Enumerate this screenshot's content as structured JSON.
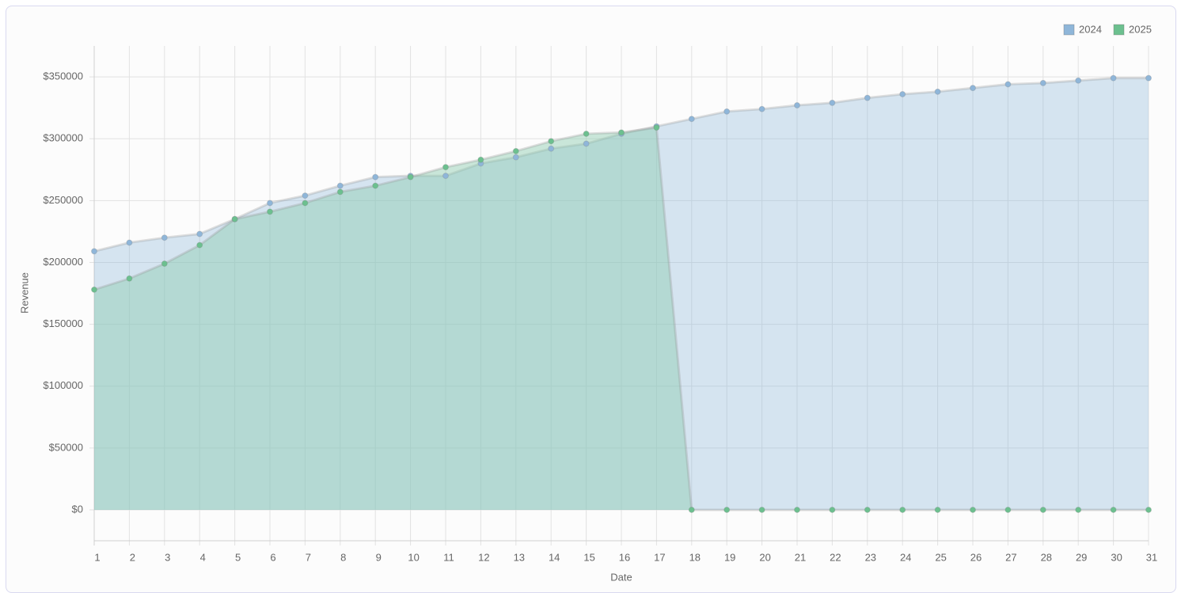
{
  "chart_data": {
    "type": "area",
    "x_label": "Date",
    "y_label": "Revenue",
    "categories": [
      "1",
      "2",
      "3",
      "4",
      "5",
      "6",
      "7",
      "8",
      "9",
      "10",
      "11",
      "12",
      "13",
      "14",
      "15",
      "16",
      "17",
      "18",
      "19",
      "20",
      "21",
      "22",
      "23",
      "24",
      "25",
      "26",
      "27",
      "28",
      "29",
      "30",
      "31"
    ],
    "series": [
      {
        "name": "2024",
        "color": "#8fb6d9",
        "fill": "rgba(130,178,215,0.32)",
        "values": [
          209000,
          216000,
          220000,
          223000,
          235000,
          248000,
          254000,
          262000,
          269000,
          270000,
          270000,
          280000,
          285000,
          292000,
          296000,
          304000,
          310000,
          316000,
          322000,
          324000,
          327000,
          329000,
          333000,
          336000,
          338000,
          341000,
          344000,
          345000,
          347000,
          349000,
          349000
        ]
      },
      {
        "name": "2025",
        "color": "#6cc08f",
        "fill": "rgba(140,205,175,0.45)",
        "values": [
          178000,
          187000,
          199000,
          214000,
          235000,
          241000,
          248000,
          257000,
          262000,
          269000,
          277000,
          283000,
          290000,
          298000,
          304000,
          305000,
          309000,
          0,
          0,
          0,
          0,
          0,
          0,
          0,
          0,
          0,
          0,
          0,
          0,
          0,
          0
        ]
      }
    ],
    "ylim": [
      -25000,
      375000
    ],
    "yticks": [
      {
        "value": 0,
        "label": "$0"
      },
      {
        "value": 50000,
        "label": "$50000"
      },
      {
        "value": 100000,
        "label": "$100000"
      },
      {
        "value": 150000,
        "label": "$150000"
      },
      {
        "value": 200000,
        "label": "$200000"
      },
      {
        "value": 250000,
        "label": "$250000"
      },
      {
        "value": 300000,
        "label": "$300000"
      },
      {
        "value": 350000,
        "label": "$350000"
      }
    ],
    "grid": true,
    "legend": "top-right"
  }
}
